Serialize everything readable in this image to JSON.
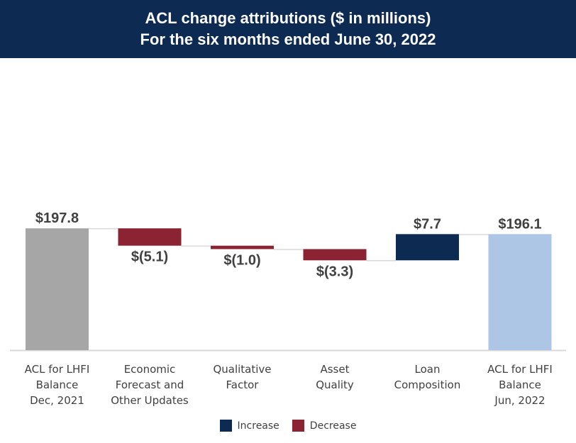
{
  "header": {
    "title_line1": "ACL change attributions ($ in millions)",
    "title_line2": "For the six months ended June 30, 2022"
  },
  "colors": {
    "header_bg": "#0d2a52",
    "start_total": "#a6a6a6",
    "end_total": "#adc6e5",
    "increase": "#0d2a52",
    "decrease": "#8b2332",
    "connector": "#d9d9d9",
    "baseline": "#d9d9d9"
  },
  "chart_data": {
    "type": "bar",
    "subtype": "waterfall",
    "ylim": [
      162,
      200
    ],
    "categories": [
      {
        "label": [
          "ACL for LHFI",
          "Balance",
          "Dec, 2021"
        ],
        "kind": "total_start",
        "value": 197.8,
        "data_label": "$197.8"
      },
      {
        "label": [
          "Economic",
          "Forecast and",
          "Other Updates"
        ],
        "kind": "decrease",
        "value": -5.1,
        "data_label": "$(5.1)"
      },
      {
        "label": [
          "Qualitative",
          "Factor"
        ],
        "kind": "decrease",
        "value": -1.0,
        "data_label": "$(1.0)"
      },
      {
        "label": [
          "Asset",
          "Quality"
        ],
        "kind": "decrease",
        "value": -3.3,
        "data_label": "$(3.3)"
      },
      {
        "label": [
          "Loan",
          "Composition"
        ],
        "kind": "increase",
        "value": 7.7,
        "data_label": "$7.7"
      },
      {
        "label": [
          "ACL for LHFI",
          "Balance",
          "Jun, 2022"
        ],
        "kind": "total_end",
        "value": 196.1,
        "data_label": "$196.1"
      }
    ],
    "legend": [
      {
        "name": "Increase",
        "color_key": "increase"
      },
      {
        "name": "Decrease",
        "color_key": "decrease"
      }
    ],
    "legend_position": "bottom"
  }
}
